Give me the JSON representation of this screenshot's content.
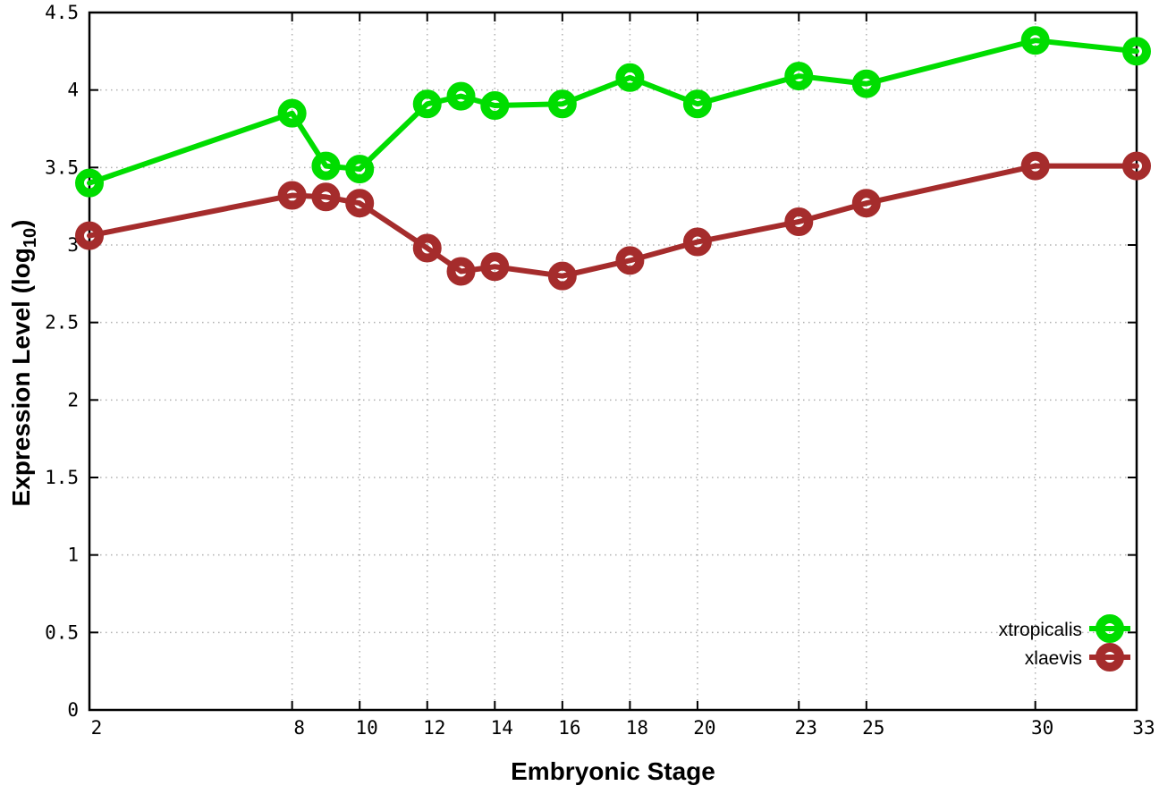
{
  "chart_data": {
    "type": "line",
    "title": "",
    "xlabel": "Embryonic Stage",
    "ylabel": {
      "text": "Expression Level (log",
      "sub": "10",
      "suffix": ")"
    },
    "xlim": [
      2,
      33
    ],
    "ylim": [
      0,
      4.5
    ],
    "grid": true,
    "legend_position": "inside-bottom-right",
    "xticks": [
      2,
      8,
      10,
      12,
      14,
      16,
      18,
      20,
      23,
      25,
      30,
      33
    ],
    "yticks": [
      0,
      0.5,
      1,
      1.5,
      2,
      2.5,
      3,
      3.5,
      4,
      4.5
    ],
    "x": [
      2,
      8,
      9,
      10,
      12,
      13,
      14,
      16,
      18,
      20,
      23,
      25,
      30,
      33
    ],
    "series": [
      {
        "name": "xtropicalis",
        "color": "#00dd00",
        "marker": "open-circle",
        "values": [
          3.4,
          3.85,
          3.51,
          3.49,
          3.91,
          3.96,
          3.9,
          3.91,
          4.08,
          3.91,
          4.09,
          4.04,
          4.32,
          4.25
        ]
      },
      {
        "name": "xlaevis",
        "color": "#a52c2c",
        "marker": "open-circle",
        "values": [
          3.06,
          3.32,
          3.31,
          3.27,
          2.98,
          2.83,
          2.86,
          2.8,
          2.9,
          3.02,
          3.15,
          3.27,
          3.51,
          3.51
        ]
      }
    ],
    "colors": {
      "background": "#ffffff",
      "grid": "#b0b0b0",
      "axis": "#000000"
    }
  }
}
